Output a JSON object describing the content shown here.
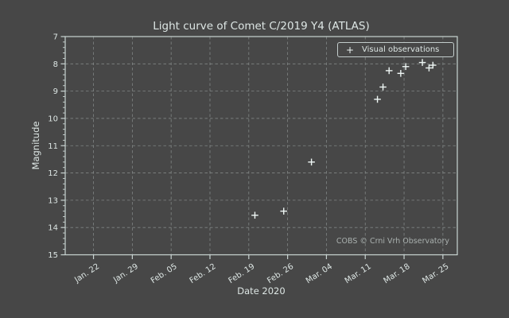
{
  "figure": {
    "background_color": "#474747",
    "text_color": "#dde6e4",
    "axis_color": "#c9d4d2",
    "grid_color": "#949a99",
    "marker_color": "#eef6f4",
    "watermark_color": "#a9b0ae"
  },
  "chart": {
    "title": "Light curve of Comet C/2019 Y4 (ATLAS)",
    "xlabel": "Date 2020",
    "ylabel": "Magnitude",
    "legend_label": "Visual observations",
    "legend_marker": "+",
    "watermark": "COBS © Crni Vrh Observatory"
  },
  "chart_data": {
    "type": "scatter",
    "title": "Light curve of Comet C/2019 Y4 (ATLAS)",
    "xlabel": "Date 2020",
    "ylabel": "Magnitude",
    "grid": true,
    "y_inverted": true,
    "ylim": [
      15,
      7
    ],
    "y_ticks": [
      7,
      8,
      9,
      10,
      11,
      12,
      13,
      14,
      15
    ],
    "y_minor_tick_step": 0.2,
    "x_tick_labels": [
      "Jan. 22",
      "Jan. 29",
      "Feb. 05",
      "Feb. 12",
      "Feb. 19",
      "Feb. 26",
      "Mar. 04",
      "Mar. 11",
      "Mar. 18",
      "Mar. 25"
    ],
    "x_tick_days": [
      0,
      7,
      14,
      21,
      28,
      35,
      42,
      49,
      56,
      63
    ],
    "x_range_days": [
      -5.1,
      65.6
    ],
    "legend_position": "upper right",
    "annotations": [
      "COBS © Crni Vrh Observatory"
    ],
    "series": [
      {
        "name": "Visual observations",
        "marker": "+",
        "points": [
          {
            "date": "Feb. 20",
            "day": 29.1,
            "mag": 13.55
          },
          {
            "date": "Feb. 25",
            "day": 34.3,
            "mag": 13.4
          },
          {
            "date": "Mar. 01",
            "day": 39.3,
            "mag": 11.6
          },
          {
            "date": "Mar. 13",
            "day": 51.2,
            "mag": 9.3
          },
          {
            "date": "Mar. 14",
            "day": 52.2,
            "mag": 8.85
          },
          {
            "date": "Mar. 15",
            "day": 53.3,
            "mag": 8.25
          },
          {
            "date": "Mar. 17",
            "day": 55.4,
            "mag": 8.35
          },
          {
            "date": "Mar. 18",
            "day": 56.3,
            "mag": 8.1
          },
          {
            "date": "Mar. 21",
            "day": 59.3,
            "mag": 7.95
          },
          {
            "date": "Mar. 22",
            "day": 60.5,
            "mag": 8.15
          },
          {
            "date": "Mar. 23",
            "day": 61.2,
            "mag": 8.05
          }
        ]
      }
    ]
  }
}
